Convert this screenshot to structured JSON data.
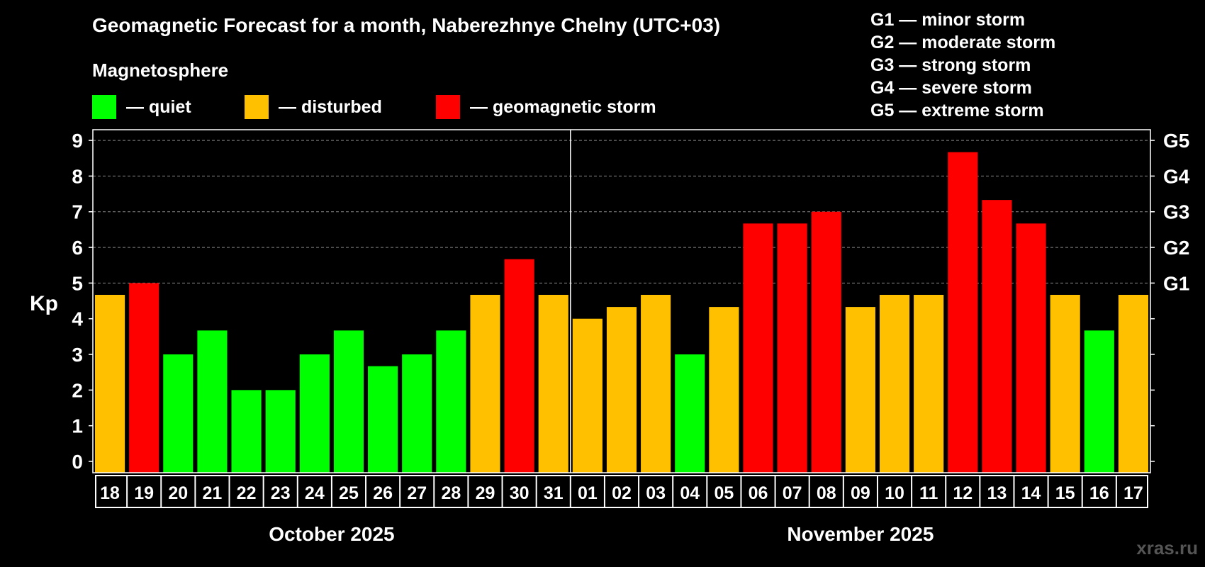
{
  "title": "Geomagnetic Forecast for a month, Naberezhnye Chelny (UTC+03)",
  "magnetosphere_label": "Magnetosphere",
  "legend": {
    "quiet": {
      "label": "— quiet",
      "color": "#00ff00"
    },
    "disturbed": {
      "label": "— disturbed",
      "color": "#ffc000"
    },
    "storm": {
      "label": "— geomagnetic storm",
      "color": "#ff0000"
    }
  },
  "g_scale": [
    "G1 — minor storm",
    "G2 — moderate storm",
    "G3 — strong storm",
    "G4 — severe storm",
    "G5 — extreme storm"
  ],
  "watermark": "xras.ru",
  "chart_data": {
    "type": "bar",
    "ylabel": "Kp",
    "ylim": [
      0,
      9.3
    ],
    "yticks": [
      "0",
      "1",
      "2",
      "3",
      "4",
      "5",
      "6",
      "7",
      "8",
      "9"
    ],
    "right_axis": [
      {
        "value": 5,
        "label": "G1"
      },
      {
        "value": 6,
        "label": "G2"
      },
      {
        "value": 7,
        "label": "G3"
      },
      {
        "value": 8,
        "label": "G4"
      },
      {
        "value": 9,
        "label": "G5"
      }
    ],
    "months": [
      {
        "label": "October 2025",
        "count": 14
      },
      {
        "label": "November 2025",
        "count": 17
      }
    ],
    "categories": [
      "18",
      "19",
      "20",
      "21",
      "22",
      "23",
      "24",
      "25",
      "26",
      "27",
      "28",
      "29",
      "30",
      "31",
      "01",
      "02",
      "03",
      "04",
      "05",
      "06",
      "07",
      "08",
      "09",
      "10",
      "11",
      "12",
      "13",
      "14",
      "15",
      "16",
      "17"
    ],
    "values": [
      4.67,
      5.0,
      3.0,
      3.67,
      2.0,
      2.0,
      3.0,
      3.67,
      2.67,
      3.0,
      3.67,
      4.67,
      5.67,
      4.67,
      4.0,
      4.33,
      4.67,
      3.0,
      4.33,
      6.67,
      6.67,
      7.0,
      4.33,
      4.67,
      4.67,
      8.67,
      7.33,
      6.67,
      4.67,
      3.67,
      4.67
    ],
    "levels": [
      "disturbed",
      "storm",
      "quiet",
      "quiet",
      "quiet",
      "quiet",
      "quiet",
      "quiet",
      "quiet",
      "quiet",
      "quiet",
      "disturbed",
      "storm",
      "disturbed",
      "disturbed",
      "disturbed",
      "disturbed",
      "quiet",
      "disturbed",
      "storm",
      "storm",
      "storm",
      "disturbed",
      "disturbed",
      "disturbed",
      "storm",
      "storm",
      "storm",
      "disturbed",
      "quiet",
      "disturbed"
    ]
  }
}
